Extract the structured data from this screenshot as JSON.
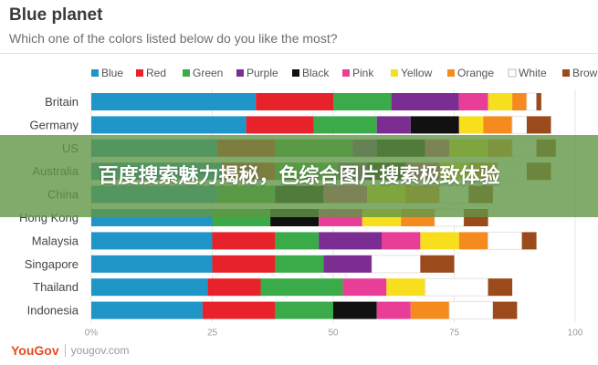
{
  "header": {
    "title": "Blue planet",
    "subtitle": "Which one of the colors listed below do you like the most?"
  },
  "overlay": {
    "text": "百度搜索魅力揭秘，色综合图片搜索极致体验"
  },
  "footer": {
    "brand": "YouGov",
    "site": "yougov.com"
  },
  "colors": {
    "Blue": "#1f95c8",
    "Red": "#e8222a",
    "Green": "#3aab48",
    "Purple": "#7c2d91",
    "Black": "#111111",
    "Pink": "#e83e97",
    "Yellow": "#f7df1e",
    "Orange": "#f58a1f",
    "White": "#ffffff",
    "Brown": "#9b4a1c"
  },
  "chart_data": {
    "type": "bar",
    "orientation": "horizontal",
    "stacked": true,
    "title": "Blue planet",
    "subtitle": "Which one of the colors listed below do you like the most?",
    "xlim": [
      0,
      100
    ],
    "x_ticks": [
      "0%",
      "25",
      "50",
      "75",
      "100"
    ],
    "legend_position": "top",
    "categories": [
      "Britain",
      "Germany",
      "US",
      "Australia",
      "China",
      "Hong Kong",
      "Malaysia",
      "Singapore",
      "Thailand",
      "Indonesia"
    ],
    "series": [
      {
        "name": "Blue",
        "values": [
          34,
          32,
          26,
          27,
          26,
          25,
          25,
          25,
          24,
          23
        ]
      },
      {
        "name": "Red",
        "values": [
          16,
          14,
          12,
          11,
          0,
          0,
          13,
          13,
          11,
          15
        ]
      },
      {
        "name": "Green",
        "values": [
          12,
          13,
          16,
          13,
          12,
          12,
          9,
          10,
          17,
          12
        ]
      },
      {
        "name": "Purple",
        "values": [
          14,
          7,
          5,
          6,
          0,
          0,
          13,
          10,
          0,
          0
        ]
      },
      {
        "name": "Black",
        "values": [
          0,
          10,
          10,
          8,
          10,
          10,
          0,
          0,
          0,
          9
        ]
      },
      {
        "name": "Pink",
        "values": [
          6,
          0,
          5,
          7,
          9,
          9,
          8,
          0,
          9,
          7
        ]
      },
      {
        "name": "Yellow",
        "values": [
          5,
          5,
          8,
          6,
          8,
          8,
          8,
          0,
          8,
          0
        ]
      },
      {
        "name": "Orange",
        "values": [
          3,
          6,
          5,
          6,
          7,
          7,
          6,
          0,
          0,
          8
        ]
      },
      {
        "name": "White",
        "values": [
          2,
          3,
          5,
          6,
          6,
          6,
          7,
          10,
          13,
          9
        ]
      },
      {
        "name": "Brown",
        "values": [
          1,
          5,
          4,
          5,
          5,
          5,
          3,
          7,
          5,
          5
        ]
      }
    ]
  }
}
